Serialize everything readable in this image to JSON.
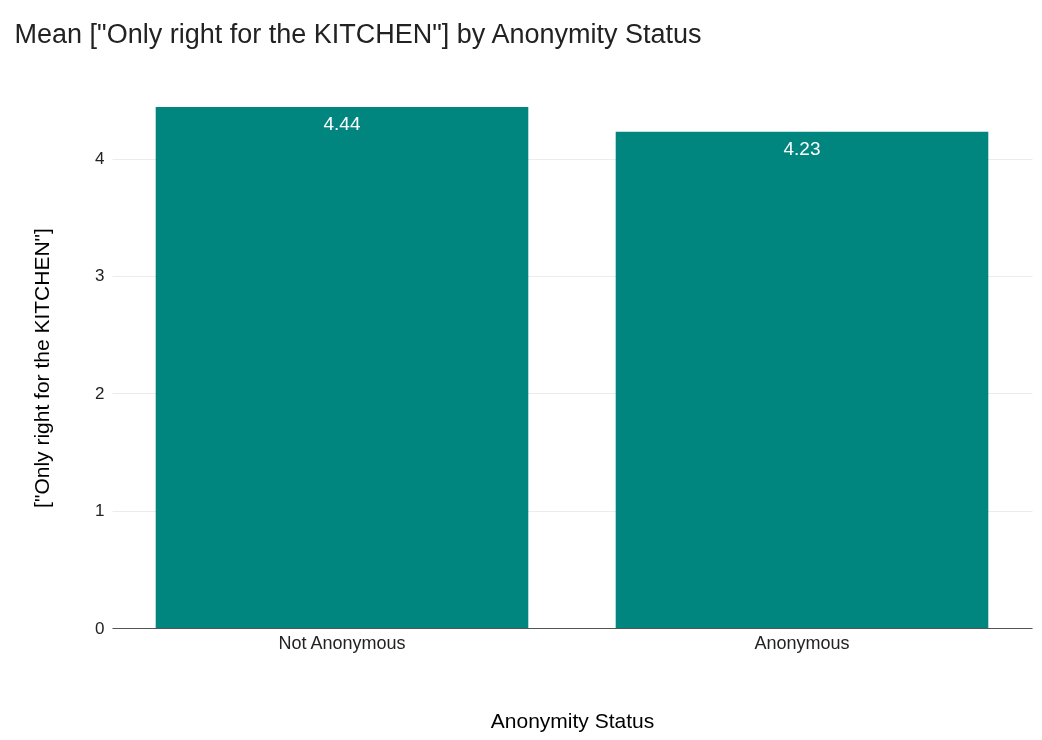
{
  "chart_data": {
    "type": "bar",
    "title": "Mean [\"Only right for the KITCHEN\"] by Anonymity Status",
    "xlabel": "Anonymity Status",
    "ylabel": "[\"Only right for the KITCHEN\"]",
    "categories": [
      "Not Anonymous",
      "Anonymous"
    ],
    "values": [
      4.44,
      4.23
    ],
    "color": "#00857f",
    "ylim": [
      0,
      4.44
    ],
    "yticks": [
      0,
      1,
      2,
      3,
      4
    ],
    "grid": "y",
    "data_labels": true
  }
}
